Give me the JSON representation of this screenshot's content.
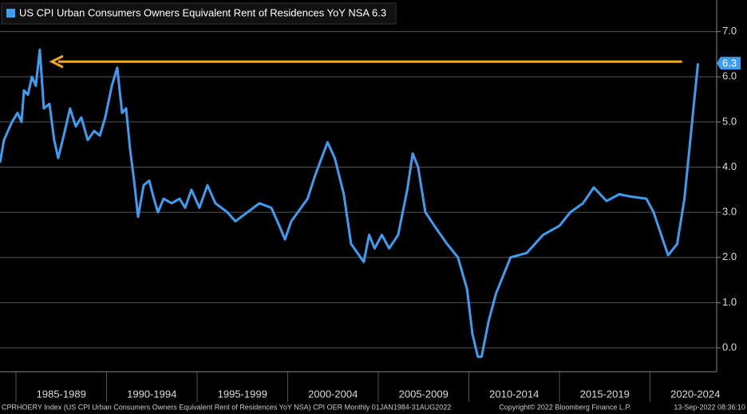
{
  "chart_data": {
    "type": "line",
    "legend_title": "US CPI Urban Consumers Owners Equivalent Rent of Residences YoY NSA 6.3",
    "last_value_label": "6.3",
    "footer_left": "CPRHOERY Index (US CPI Urban Consumers Owners Equivalent Rent of Residences YoY NSA) CPI OER  Monthly 01JAN1984-31AUG2022",
    "footer_center": "Copyright© 2022 Bloomberg Finance L.P.",
    "footer_right": "13-Sep-2022 08:36:10",
    "xlim": [
      1984.12,
      2023.68
    ],
    "ylim": [
      -0.53,
      7.7
    ],
    "grid": true,
    "xticks": [
      {
        "value": 1985,
        "label": "1985-1989"
      },
      {
        "value": 1990,
        "label": "1990-1994"
      },
      {
        "value": 1995,
        "label": "1995-1999"
      },
      {
        "value": 2000,
        "label": "2000-2004"
      },
      {
        "value": 2005,
        "label": "2005-2009"
      },
      {
        "value": 2010,
        "label": "2010-2014"
      },
      {
        "value": 2015,
        "label": "2015-2019"
      },
      {
        "value": 2020,
        "label": "2020-2024"
      }
    ],
    "yticks": [
      {
        "value": 0,
        "label": "0.0"
      },
      {
        "value": 1,
        "label": "1.0"
      },
      {
        "value": 2,
        "label": "2.0"
      },
      {
        "value": 3,
        "label": "3.0"
      },
      {
        "value": 4,
        "label": "4.0"
      },
      {
        "value": 5,
        "label": "5.0"
      },
      {
        "value": 6,
        "label": "6.0"
      },
      {
        "value": 7,
        "label": "7.0"
      }
    ],
    "series": [
      {
        "name": "US CPI Urban Consumers Owners Equivalent Rent of Residences YoY NSA",
        "color": "#3d9df2",
        "x": [
          1984.12,
          1984.34,
          1984.56,
          1984.78,
          1985.09,
          1985.31,
          1985.44,
          1985.66,
          1985.88,
          1986.1,
          1986.32,
          1986.54,
          1986.85,
          1987.11,
          1987.33,
          1987.64,
          1987.99,
          1988.3,
          1988.61,
          1988.96,
          1989.32,
          1989.63,
          1989.93,
          1990.29,
          1990.59,
          1990.86,
          1991.08,
          1991.3,
          1991.52,
          1991.74,
          1992.05,
          1992.36,
          1992.62,
          1992.84,
          1993.15,
          1993.59,
          1994.03,
          1994.34,
          1994.69,
          1995.13,
          1995.57,
          1996.01,
          1996.67,
          1997.11,
          1997.78,
          1998.44,
          1999.1,
          1999.54,
          1999.85,
          2000.2,
          2001.1,
          2001.5,
          2002.2,
          2002.6,
          2003.1,
          2003.5,
          2004.2,
          2004.5,
          2004.8,
          2005.2,
          2005.6,
          2006.1,
          2006.6,
          2006.9,
          2007.2,
          2007.6,
          2008.1,
          2008.8,
          2009.4,
          2009.9,
          2010.2,
          2010.5,
          2010.7,
          2011.1,
          2011.5,
          2012.0,
          2012.3,
          2013.2,
          2014.1,
          2015.0,
          2015.6,
          2016.3,
          2016.9,
          2017.6,
          2018.3,
          2018.9,
          2019.8,
          2020.2,
          2020.7,
          2021.0,
          2021.5,
          2021.9,
          2022.2,
          2022.4,
          2022.65
        ],
        "values": [
          4.1,
          4.6,
          4.8,
          5.0,
          5.2,
          5.0,
          5.7,
          5.6,
          6.0,
          5.8,
          6.6,
          5.3,
          5.4,
          4.6,
          4.2,
          4.7,
          5.3,
          4.9,
          5.1,
          4.6,
          4.8,
          4.7,
          5.1,
          5.8,
          6.2,
          5.2,
          5.3,
          4.4,
          3.7,
          2.9,
          3.6,
          3.7,
          3.3,
          3.0,
          3.3,
          3.2,
          3.3,
          3.1,
          3.5,
          3.1,
          3.6,
          3.2,
          3.0,
          2.8,
          3.0,
          3.2,
          3.1,
          2.7,
          2.4,
          2.8,
          3.3,
          3.8,
          4.55,
          4.2,
          3.4,
          2.3,
          1.9,
          2.5,
          2.2,
          2.5,
          2.2,
          2.5,
          3.5,
          4.3,
          4.0,
          3.0,
          2.7,
          2.3,
          2.0,
          1.3,
          0.3,
          -0.2,
          -0.2,
          0.6,
          1.2,
          1.7,
          2.0,
          2.1,
          2.5,
          2.7,
          3.0,
          3.2,
          3.55,
          3.25,
          3.4,
          3.35,
          3.3,
          3.0,
          2.4,
          2.05,
          2.3,
          3.3,
          4.5,
          5.3,
          6.3
        ]
      }
    ]
  }
}
